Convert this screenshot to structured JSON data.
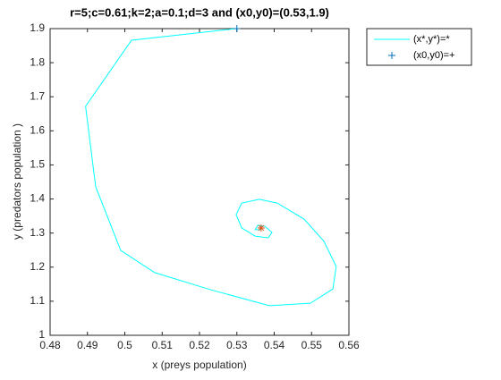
{
  "chart_data": {
    "type": "line",
    "title": "r=5;c=0.61;k=2;a=0.1;d=3 and (x0,y0)=(0.53,1.9)",
    "xlabel": "x (preys population)",
    "ylabel": "y (predators population )",
    "xlim": [
      0.48,
      0.56
    ],
    "ylim": [
      1,
      1.9
    ],
    "xticks": [
      0.48,
      0.49,
      0.5,
      0.51,
      0.52,
      0.53,
      0.54,
      0.55,
      0.56
    ],
    "yticks": [
      1,
      1.1,
      1.2,
      1.3,
      1.4,
      1.5,
      1.6,
      1.7,
      1.8,
      1.9
    ],
    "series": [
      {
        "name": "(x*,y*)=*",
        "color": "#00ffff",
        "x": [
          0.5298,
          0.5018,
          0.4895,
          0.4922,
          0.4989,
          0.508,
          0.5229,
          0.5387,
          0.5497,
          0.5557,
          0.5566,
          0.5533,
          0.548,
          0.5408,
          0.536,
          0.5313,
          0.5298,
          0.5313,
          0.5349,
          0.5384,
          0.5394,
          0.5375,
          0.5356,
          0.5349,
          0.5365
        ],
        "y": [
          1.9,
          1.866,
          1.672,
          1.436,
          1.249,
          1.184,
          1.134,
          1.087,
          1.094,
          1.136,
          1.202,
          1.276,
          1.341,
          1.388,
          1.399,
          1.388,
          1.354,
          1.315,
          1.291,
          1.286,
          1.302,
          1.32,
          1.323,
          1.31,
          1.31
        ]
      },
      {
        "name": "(x0,y0)=+",
        "color": "#0072bd",
        "marker": "+",
        "x": [
          0.53
        ],
        "y": [
          1.9
        ]
      }
    ],
    "equilibrium": {
      "x": 0.5365,
      "y": 1.315,
      "color": "#d95319"
    }
  }
}
